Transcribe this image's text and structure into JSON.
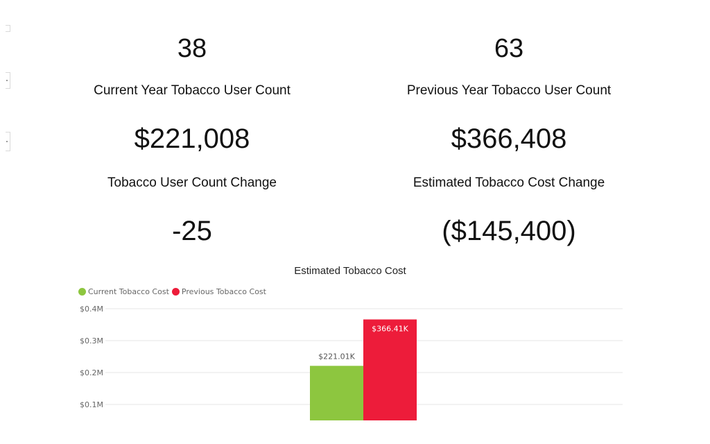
{
  "kpis": {
    "current_year_count": {
      "value": "38",
      "label": "Current Year Tobacco User Count"
    },
    "previous_year_count": {
      "value": "63",
      "label": "Previous Year Tobacco User Count"
    },
    "current_cost": {
      "value": "$221,008"
    },
    "previous_cost": {
      "value": "$366,408"
    },
    "count_change": {
      "value": "-25",
      "label": "Tobacco User Count Change"
    },
    "cost_change": {
      "value": "($145,400)",
      "label": "Estimated Tobacco Cost Change"
    }
  },
  "colors": {
    "current": "#8dc63f",
    "previous": "#ed1c3a",
    "grid": "#e6e6e6"
  },
  "chart_data": {
    "type": "bar",
    "title": "Estimated Tobacco Cost",
    "legend_position": "top-left",
    "grid": true,
    "ylim": [
      0.05,
      0.4
    ],
    "yticks": [
      0.1,
      0.2,
      0.3,
      0.4
    ],
    "ytick_labels": [
      "$0.1M",
      "$0.2M",
      "$0.3M",
      "$0.4M"
    ],
    "series": [
      {
        "name": "Current Tobacco Cost",
        "values": [
          0.22101
        ],
        "data_label": "$221.01K"
      },
      {
        "name": "Previous Tobacco Cost",
        "values": [
          0.36641
        ],
        "data_label": "$366.41K"
      }
    ]
  }
}
